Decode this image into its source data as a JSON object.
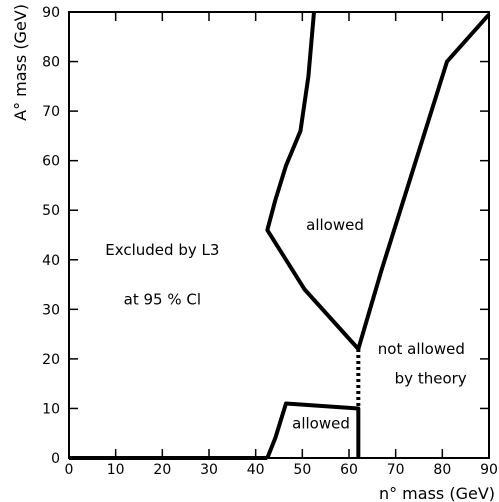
{
  "chart_data": {
    "type": "line",
    "xlabel": "n° mass (GeV)",
    "ylabel": "A° mass (GeV)",
    "xlim": [
      0,
      90
    ],
    "ylim": [
      0,
      90
    ],
    "x_ticks": [
      0,
      10,
      20,
      30,
      40,
      50,
      60,
      70,
      80,
      90
    ],
    "y_ticks": [
      0,
      10,
      20,
      30,
      40,
      50,
      60,
      70,
      80,
      90
    ],
    "grid": false,
    "series": [
      {
        "style": "solid",
        "points": [
          [
            52.5,
            90
          ],
          [
            51.3,
            77
          ],
          [
            49.6,
            66
          ],
          [
            46.5,
            59
          ],
          [
            44.2,
            52
          ],
          [
            42.5,
            46
          ],
          [
            50.5,
            34
          ],
          [
            62,
            22
          ],
          [
            67,
            38
          ],
          [
            71,
            50
          ],
          [
            81,
            80
          ],
          [
            90,
            89.5
          ]
        ]
      },
      {
        "style": "dotted",
        "points": [
          [
            62,
            22
          ],
          [
            62,
            10
          ]
        ]
      },
      {
        "style": "solid",
        "points": [
          [
            42.5,
            0
          ],
          [
            44.2,
            4
          ],
          [
            46.5,
            11
          ],
          [
            62,
            10
          ],
          [
            62,
            0
          ]
        ]
      },
      {
        "style": "solid",
        "points": [
          [
            0,
            0
          ],
          [
            42.5,
            0
          ]
        ]
      }
    ],
    "annotations": [
      {
        "text": "allowed",
        "x": 57,
        "y": 46
      },
      {
        "text": "Excluded by L3",
        "x": 20,
        "y": 41
      },
      {
        "text": "at 95 % Cl",
        "x": 20,
        "y": 31
      },
      {
        "text": "not allowed",
        "x": 75.5,
        "y": 21
      },
      {
        "text": "by theory",
        "x": 77.5,
        "y": 15
      },
      {
        "text": "allowed",
        "x": 54,
        "y": 6
      }
    ]
  }
}
